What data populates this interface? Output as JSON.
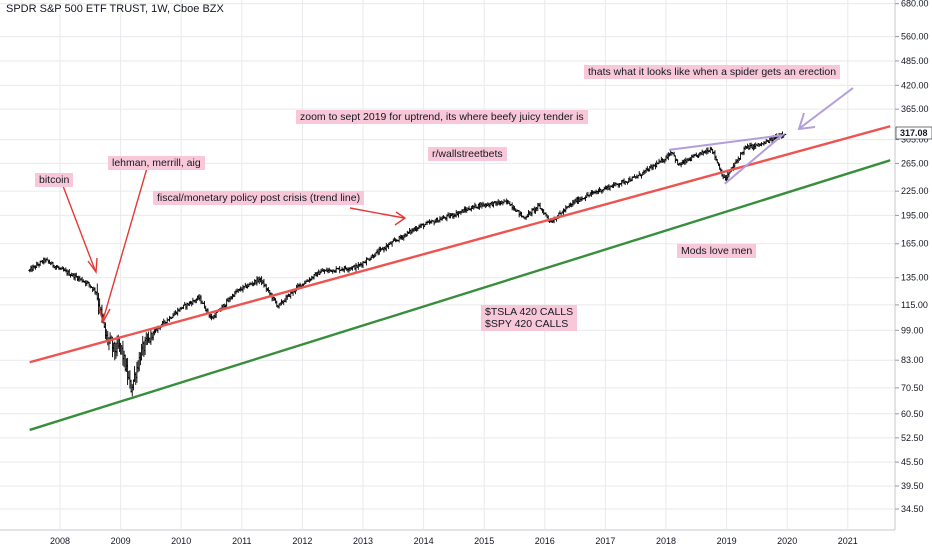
{
  "header": {
    "title": "SPDR S&P 500 ETF TRUST, 1W, Cboe BZX"
  },
  "annotations": [
    {
      "id": "spider",
      "text": "thats what it looks like when a spider gets an erection"
    },
    {
      "id": "zoom",
      "text": "zoom to sept 2019 for uptrend, its where beefy juicy tender is"
    },
    {
      "id": "wsb",
      "text": "r/wallstreetbets"
    },
    {
      "id": "bitcoin",
      "text": "bitcoin"
    },
    {
      "id": "lehman",
      "text": "lehman, merrill, aig"
    },
    {
      "id": "policy",
      "text": "fiscal/monetary policy post crisis (trend line)"
    },
    {
      "id": "mods",
      "text": "Mods love men"
    },
    {
      "id": "calls",
      "text": "$TSLA 420 CALLS\n$SPY 420 CALLS"
    }
  ],
  "colors": {
    "bars": "#000000",
    "red_line": "#ef5350",
    "green_line": "#388e3c",
    "arrow_red": "#e53935",
    "wedge": "#b39ddb",
    "note_bg": "#f8c8d8",
    "grid": "#e9eaee"
  },
  "chart_data": {
    "type": "ohlc",
    "scale": "log",
    "y_ticks": [
      680.0,
      560.0,
      485.0,
      420.0,
      365.0,
      305.0,
      265.0,
      225.0,
      195.0,
      165.0,
      135.0,
      115.0,
      99.0,
      83.0,
      70.5,
      60.5,
      52.5,
      45.5,
      39.5,
      34.5
    ],
    "x_ticks": [
      "2008",
      "2009",
      "2010",
      "2011",
      "2012",
      "2013",
      "2014",
      "2015",
      "2016",
      "2017",
      "2018",
      "2019",
      "2020",
      "2021"
    ],
    "last_price": "317.08",
    "price_path": [
      [
        "2007.5",
        141
      ],
      [
        "2007.75",
        150
      ],
      [
        "2008.0",
        142
      ],
      [
        "2008.25",
        136
      ],
      [
        "2008.45",
        131
      ],
      [
        "2008.6",
        124
      ],
      [
        "2008.75",
        96
      ],
      [
        "2008.9",
        88
      ],
      [
        "2009.0",
        90
      ],
      [
        "2009.17",
        70
      ],
      [
        "2009.35",
        88
      ],
      [
        "2009.6",
        100
      ],
      [
        "2010.0",
        113
      ],
      [
        "2010.3",
        120
      ],
      [
        "2010.5",
        106
      ],
      [
        "2010.9",
        124
      ],
      [
        "2011.3",
        134
      ],
      [
        "2011.6",
        114
      ],
      [
        "2011.9",
        127
      ],
      [
        "2012.3",
        140
      ],
      [
        "2012.9",
        144
      ],
      [
        "2013.4",
        163
      ],
      [
        "2013.9",
        182
      ],
      [
        "2014.5",
        196
      ],
      [
        "2014.9",
        207
      ],
      [
        "2015.4",
        211
      ],
      [
        "2015.65",
        192
      ],
      [
        "2015.9",
        206
      ],
      [
        "2016.1",
        188
      ],
      [
        "2016.5",
        212
      ],
      [
        "2016.9",
        226
      ],
      [
        "2017.5",
        244
      ],
      [
        "2017.95",
        270
      ],
      [
        "2018.1",
        285
      ],
      [
        "2018.2",
        262
      ],
      [
        "2018.75",
        290
      ],
      [
        "2018.97",
        240
      ],
      [
        "2019.3",
        290
      ],
      [
        "2019.6",
        297
      ],
      [
        "2019.9",
        315
      ],
      [
        "2019.97",
        317
      ]
    ],
    "trend_lines": [
      {
        "color": "red",
        "from": [
          "2007.5",
          82
        ],
        "to": [
          "2021.7",
          330
        ]
      },
      {
        "color": "green",
        "from": [
          "2007.5",
          55
        ],
        "to": [
          "2021.7",
          270
        ]
      }
    ]
  }
}
